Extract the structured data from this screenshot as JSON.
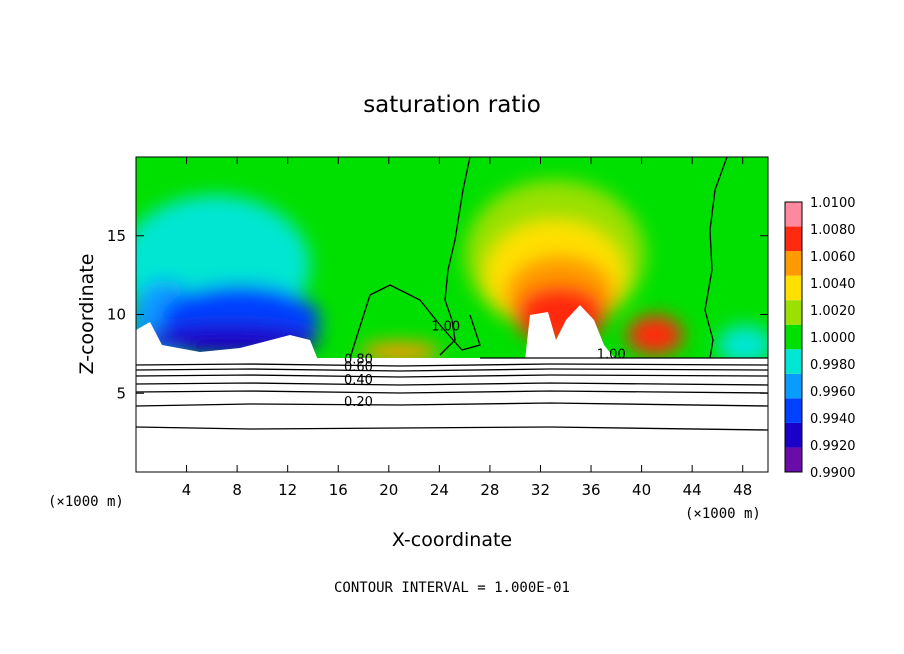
{
  "chart_data": {
    "type": "heatmap",
    "title": "saturation ratio",
    "xlabel": "X-coordinate",
    "ylabel": "Z-coordinate",
    "x_unit": "(×1000 m)",
    "xlim": [
      0,
      50
    ],
    "ylim": [
      0,
      20
    ],
    "x_ticks": [
      4,
      8,
      12,
      16,
      20,
      24,
      28,
      32,
      36,
      40,
      44,
      48
    ],
    "y_ticks": [
      5,
      10,
      15
    ],
    "colorbar": {
      "levels": [
        "0.9900",
        "0.9920",
        "0.9940",
        "0.9960",
        "0.9980",
        "1.0000",
        "1.0020",
        "1.0040",
        "1.0060",
        "1.0080",
        "1.0100"
      ],
      "colors": [
        "#6a0da8",
        "#1a00c8",
        "#0040ff",
        "#0a9bff",
        "#00e6d2",
        "#00e000",
        "#9ae000",
        "#ffe000",
        "#ff9a00",
        "#ff2a10",
        "#ff8aa0"
      ]
    },
    "contour_labels": [
      {
        "text": "1.00",
        "x": 24.5,
        "y": 9.0
      },
      {
        "text": "1.00",
        "x": 37.6,
        "y": 7.2
      },
      {
        "text": "0.80",
        "x": 17.6,
        "y": 6.9
      },
      {
        "text": "0.60",
        "x": 17.6,
        "y": 6.4
      },
      {
        "text": "0.40",
        "x": 17.6,
        "y": 5.6
      },
      {
        "text": "0.20",
        "x": 17.6,
        "y": 4.2
      }
    ],
    "annotation": "CONTOUR INTERVAL = 1.000E-01"
  }
}
